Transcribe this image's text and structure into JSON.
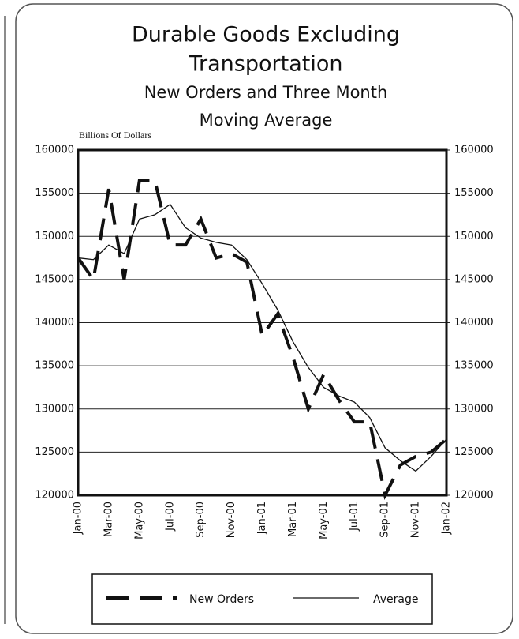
{
  "chart_data": {
    "type": "line",
    "title": [
      "Durable Goods Excluding",
      "Transportation"
    ],
    "subtitle": [
      "New Orders and Three Month",
      "Moving Average"
    ],
    "y_label": "Billions Of Dollars",
    "categories": [
      "Jan-00",
      null,
      "Mar-00",
      null,
      "May-00",
      null,
      "Jul-00",
      null,
      "Sep-00",
      null,
      "Nov-00",
      null,
      "Jan-01",
      null,
      "Mar-01",
      null,
      "May-01",
      null,
      "Jul-01",
      null,
      "Sep-01",
      null,
      "Nov-01",
      null,
      "Jan-02"
    ],
    "series": [
      {
        "name": "New Orders",
        "color": "#111111",
        "style": "dashed",
        "values": [
          147500,
          145000,
          155500,
          145000,
          156500,
          156500,
          149000,
          149000,
          152000,
          147500,
          148000,
          147000,
          138500,
          141000,
          136000,
          130000,
          134000,
          131000,
          128500,
          128500,
          120000,
          123500,
          124500,
          125000,
          126500
        ]
      },
      {
        "name": "Average",
        "color": "#111111",
        "style": "solid",
        "values": [
          147500,
          147300,
          149000,
          148000,
          152000,
          152500,
          153700,
          151000,
          149800,
          149300,
          149000,
          147300,
          144500,
          141500,
          137800,
          134800,
          132500,
          131500,
          130800,
          129000,
          125500,
          124000,
          122800,
          124500,
          126500
        ]
      }
    ],
    "ylim": [
      120000,
      160000
    ],
    "yticks": [
      120000,
      125000,
      130000,
      135000,
      140000,
      145000,
      150000,
      155000,
      160000
    ],
    "y2lim": [
      120000,
      160000
    ],
    "y2ticks": [
      120000,
      125000,
      130000,
      135000,
      140000,
      145000,
      150000,
      155000,
      160000
    ],
    "grid": true,
    "legend": "bottom"
  }
}
